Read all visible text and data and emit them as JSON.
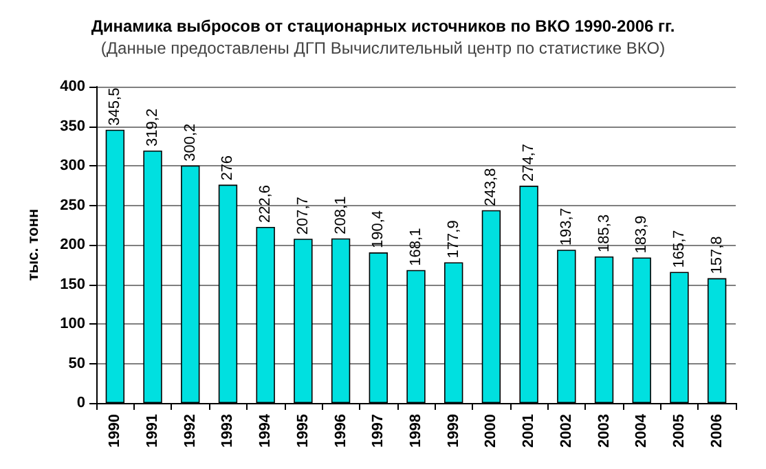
{
  "chart_data": {
    "type": "bar",
    "title": "Динамика выбросов от стационарных источников по ВКО 1990-2006 гг.",
    "subtitle": "(Данные предоставлены ДГП Вычислительный центр по статистике ВКО)",
    "ylabel": "тыс. тонн",
    "categories": [
      "1990",
      "1991",
      "1992",
      "1993",
      "1994",
      "1995",
      "1996",
      "1997",
      "1998",
      "1999",
      "2000",
      "2001",
      "2002",
      "2003",
      "2004",
      "2005",
      "2006"
    ],
    "values": [
      345.5,
      319.2,
      300.2,
      276,
      222.6,
      207.7,
      208.1,
      190.4,
      168.1,
      177.9,
      243.8,
      274.7,
      193.7,
      185.3,
      183.9,
      165.7,
      157.8
    ],
    "value_labels": [
      "345,5",
      "319,2",
      "300,2",
      "276",
      "222,6",
      "207,7",
      "208,1",
      "190,4",
      "168,1",
      "177,9",
      "243,8",
      "274,7",
      "193,7",
      "185,3",
      "183,9",
      "165,7",
      "157,8"
    ],
    "color": "#00e0e0",
    "ylim": [
      0,
      400
    ],
    "yticks": [
      0,
      50,
      100,
      150,
      200,
      250,
      300,
      350,
      400
    ],
    "grid": "y"
  }
}
